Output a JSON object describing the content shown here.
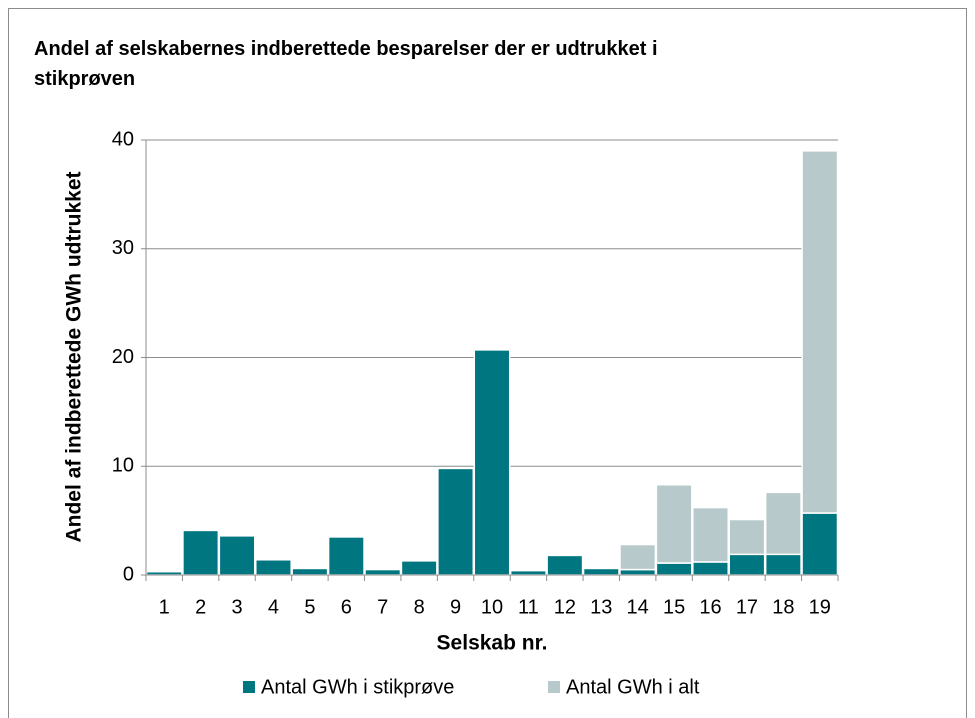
{
  "chart_data": {
    "type": "stacked_bar",
    "title": "Andel af selskabernes indberettede besparelser der er udtrukket i stikprøven",
    "x_label": "Selskab nr.",
    "y_label": "Andel af indberettede GWh udtrukket",
    "categories": [
      "1",
      "2",
      "3",
      "4",
      "5",
      "6",
      "7",
      "8",
      "9",
      "10",
      "11",
      "12",
      "13",
      "14",
      "15",
      "16",
      "17",
      "18",
      "19"
    ],
    "series": [
      {
        "name": "Antal GWh i stikprøve",
        "color": "#007681",
        "values": [
          0.3,
          4.1,
          3.6,
          1.4,
          0.6,
          3.5,
          0.5,
          1.3,
          9.8,
          20.7,
          0.4,
          1.8,
          0.6,
          0.5,
          1.1,
          1.2,
          1.9,
          1.9,
          5.7
        ]
      },
      {
        "name": "Antal GWh i alt",
        "color": "#b8c9cc",
        "values": [
          0,
          0,
          0,
          0,
          0,
          0,
          0,
          0,
          0,
          0,
          0,
          0,
          0,
          2.3,
          7.2,
          5.0,
          3.2,
          5.7,
          33.3
        ]
      }
    ],
    "ylim": [
      0,
      40
    ],
    "yticks": [
      0,
      10,
      20,
      30,
      40
    ],
    "grid": true,
    "legend": "bottom"
  }
}
